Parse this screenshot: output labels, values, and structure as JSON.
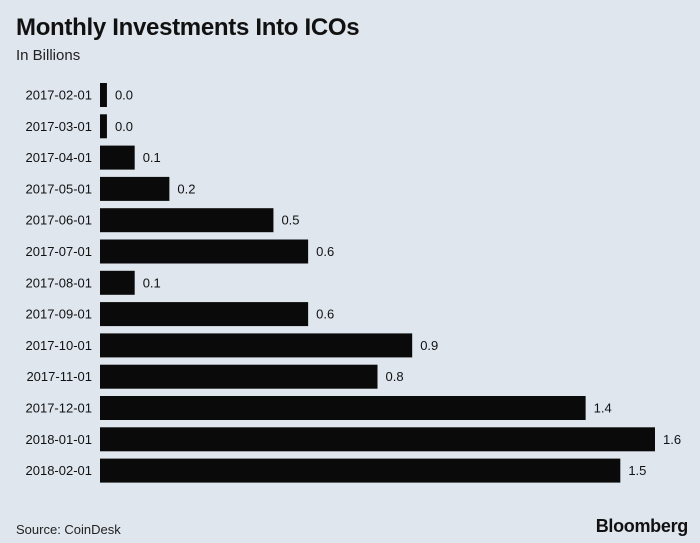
{
  "title": "Monthly Investments Into ICOs",
  "subtitle": "In Billions",
  "source": "Source: CoinDesk",
  "brand": "Bloomberg",
  "colors": {
    "background": "#dfe6ee",
    "bar": "#0a0a0a",
    "text": "#111111"
  },
  "chart_data": {
    "type": "bar",
    "orientation": "horizontal",
    "categories": [
      "2017-02-01",
      "2017-03-01",
      "2017-04-01",
      "2017-05-01",
      "2017-06-01",
      "2017-07-01",
      "2017-08-01",
      "2017-09-01",
      "2017-10-01",
      "2017-11-01",
      "2017-12-01",
      "2018-01-01",
      "2018-02-01"
    ],
    "values": [
      0.02,
      0.02,
      0.1,
      0.2,
      0.5,
      0.6,
      0.1,
      0.6,
      0.9,
      0.8,
      1.4,
      1.6,
      1.5
    ],
    "labels": [
      "0.0",
      "0.0",
      "0.1",
      "0.2",
      "0.5",
      "0.6",
      "0.1",
      "0.6",
      "0.9",
      "0.8",
      "1.4",
      "1.6",
      "1.5"
    ],
    "title": "Monthly Investments Into ICOs",
    "subtitle": "In Billions",
    "xlim": [
      0,
      1.6
    ],
    "grid": false,
    "legend": "none"
  }
}
